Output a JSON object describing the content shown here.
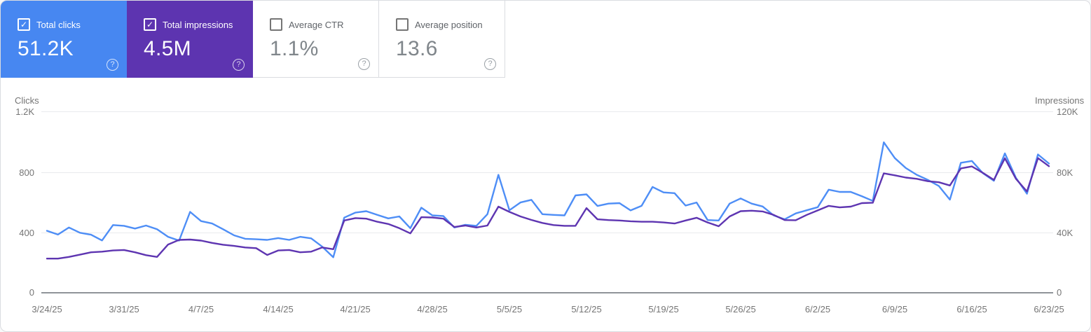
{
  "ui": {
    "help_glyph": "?",
    "check_glyph": "✓"
  },
  "cards": [
    {
      "label": "Total clicks",
      "value": "51.2K",
      "checked": true,
      "bg": "#4787f1"
    },
    {
      "label": "Total impressions",
      "value": "4.5M",
      "checked": true,
      "bg": "#5d34b0"
    },
    {
      "label": "Average CTR",
      "value": "1.1%",
      "checked": false,
      "bg": null
    },
    {
      "label": "Average position",
      "value": "13.6",
      "checked": false,
      "bg": null
    }
  ],
  "chart_data": {
    "type": "line",
    "grid": "horizontal",
    "legend": "none",
    "left_axis": {
      "title": "Clicks",
      "max": 1200,
      "tick_labels": [
        "1.2K",
        "800",
        "400",
        "0"
      ]
    },
    "right_axis": {
      "title": "Impressions",
      "max": 120000,
      "tick_labels": [
        "120K",
        "80K",
        "40K",
        "0"
      ]
    },
    "x_axis": {
      "tick_labels": [
        "3/24/25",
        "3/31/25",
        "4/7/25",
        "4/14/25",
        "4/21/25",
        "4/28/25",
        "5/5/25",
        "5/12/25",
        "5/19/25",
        "5/26/25",
        "6/2/25",
        "6/9/25",
        "6/16/25",
        "6/23/25"
      ],
      "tick_days": [
        0,
        7,
        14,
        21,
        28,
        35,
        42,
        49,
        56,
        63,
        70,
        77,
        84,
        91
      ]
    },
    "dates": [
      "3/24/25",
      "3/25/25",
      "3/26/25",
      "3/27/25",
      "3/28/25",
      "3/29/25",
      "3/30/25",
      "3/31/25",
      "4/1/25",
      "4/2/25",
      "4/3/25",
      "4/4/25",
      "4/5/25",
      "4/6/25",
      "4/7/25",
      "4/8/25",
      "4/9/25",
      "4/10/25",
      "4/11/25",
      "4/12/25",
      "4/13/25",
      "4/14/25",
      "4/15/25",
      "4/16/25",
      "4/17/25",
      "4/18/25",
      "4/19/25",
      "4/20/25",
      "4/21/25",
      "4/22/25",
      "4/23/25",
      "4/24/25",
      "4/25/25",
      "4/26/25",
      "4/27/25",
      "4/28/25",
      "4/29/25",
      "4/30/25",
      "5/1/25",
      "5/2/25",
      "5/3/25",
      "5/4/25",
      "5/5/25",
      "5/6/25",
      "5/7/25",
      "5/8/25",
      "5/9/25",
      "5/10/25",
      "5/11/25",
      "5/12/25",
      "5/13/25",
      "5/14/25",
      "5/15/25",
      "5/16/25",
      "5/17/25",
      "5/18/25",
      "5/19/25",
      "5/20/25",
      "5/21/25",
      "5/22/25",
      "5/23/25",
      "5/24/25",
      "5/25/25",
      "5/26/25",
      "5/27/25",
      "5/28/25",
      "5/29/25",
      "5/30/25",
      "5/31/25",
      "6/1/25",
      "6/2/25",
      "6/3/25",
      "6/4/25",
      "6/5/25",
      "6/6/25",
      "6/7/25",
      "6/8/25",
      "6/9/25",
      "6/10/25",
      "6/11/25",
      "6/12/25",
      "6/13/25",
      "6/14/25",
      "6/15/25",
      "6/16/25",
      "6/17/25",
      "6/18/25",
      "6/19/25",
      "6/20/25",
      "6/21/25",
      "6/22/25",
      "6/23/25"
    ],
    "series": [
      {
        "name": "Total clicks",
        "axis": "left",
        "color": "#4e8ef6",
        "values": [
          410,
          385,
          432,
          397,
          384,
          346,
          448,
          443,
          425,
          445,
          420,
          370,
          345,
          535,
          474,
          458,
          420,
          380,
          357,
          354,
          350,
          362,
          350,
          370,
          360,
          305,
          235,
          497,
          530,
          540,
          515,
          492,
          505,
          427,
          563,
          512,
          508,
          432,
          450,
          443,
          520,
          780,
          546,
          597,
          615,
          520,
          515,
          512,
          644,
          651,
          574,
          590,
          593,
          545,
          575,
          700,
          664,
          659,
          577,
          597,
          481,
          478,
          590,
          624,
          590,
          571,
          512,
          486,
          525,
          546,
          566,
          682,
          667,
          667,
          639,
          608,
          995,
          891,
          825,
          780,
          747,
          706,
          616,
          860,
          872,
          791,
          741,
          922,
          760,
          655,
          915,
          855
        ]
      },
      {
        "name": "Total impressions",
        "axis": "right",
        "color": "#5e35b1",
        "values": [
          22600,
          22600,
          23700,
          25200,
          26800,
          27200,
          28000,
          28300,
          26800,
          24900,
          23700,
          31900,
          35000,
          35200,
          34500,
          33000,
          31800,
          31000,
          30000,
          29500,
          25000,
          28000,
          28300,
          26800,
          27200,
          30000,
          28800,
          47800,
          49400,
          49000,
          47000,
          45500,
          42700,
          39300,
          50000,
          49800,
          49000,
          43500,
          44500,
          43200,
          44500,
          57000,
          53500,
          50500,
          48200,
          46200,
          44800,
          44300,
          44300,
          56000,
          48600,
          48100,
          47800,
          47300,
          47000,
          47000,
          46500,
          45800,
          47800,
          49600,
          46500,
          44000,
          50500,
          54000,
          54300,
          53800,
          51500,
          48100,
          48000,
          51500,
          54500,
          57500,
          56500,
          57000,
          59300,
          59600,
          79000,
          77700,
          76200,
          75400,
          73800,
          73100,
          71000,
          82300,
          83600,
          79300,
          74700,
          89000,
          75400,
          67000,
          89100,
          83700
        ]
      }
    ]
  }
}
